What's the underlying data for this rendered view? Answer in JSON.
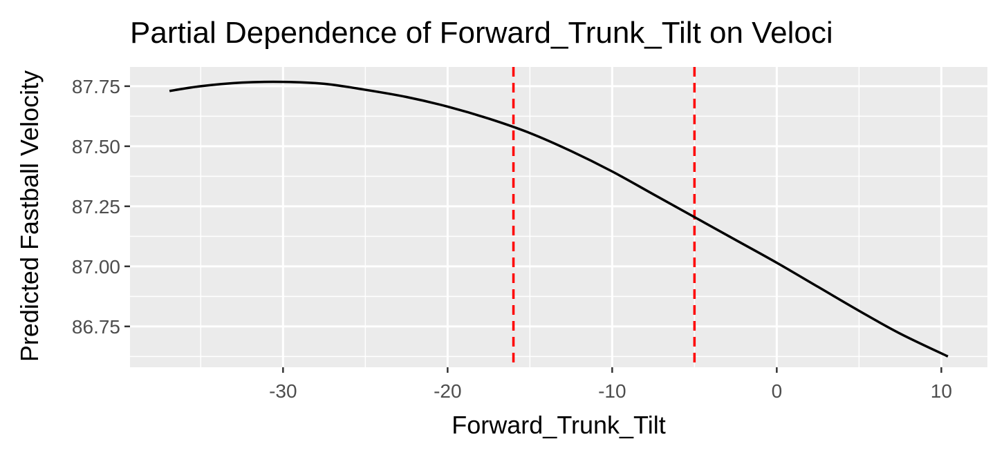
{
  "chart_data": {
    "type": "line",
    "title": "Partial Dependence of Forward_Trunk_Tilt on Veloci",
    "xlabel": "Forward_Trunk_Tilt",
    "ylabel": "Predicted Fastball Velocity",
    "xlim": [
      -39.3,
      12.8
    ],
    "ylim": [
      86.58,
      87.83
    ],
    "x_ticks": [
      -30,
      -20,
      -10,
      0,
      10
    ],
    "x_tick_labels": [
      "-30",
      "-20",
      "-10",
      "0",
      "10"
    ],
    "y_ticks": [
      86.75,
      87.0,
      87.25,
      87.5,
      87.75
    ],
    "y_tick_labels": [
      "86.75",
      "87.00",
      "87.25",
      "87.50",
      "87.75"
    ],
    "grid": true,
    "background_color": "#ebebeb",
    "line_color": "#000000",
    "reference_line_color": "#ff0000",
    "series": [
      {
        "x": [
          -36.9,
          -35,
          -32.5,
          -30,
          -27.5,
          -25,
          -22.5,
          -20,
          -17.5,
          -15,
          -12.5,
          -10,
          -7.5,
          -5,
          -2.5,
          0,
          2.5,
          5,
          7.5,
          10.4
        ],
        "y": [
          87.73,
          87.75,
          87.765,
          87.768,
          87.76,
          87.735,
          87.705,
          87.665,
          87.615,
          87.555,
          87.48,
          87.395,
          87.3,
          87.205,
          87.11,
          87.015,
          86.915,
          86.815,
          86.72,
          86.625
        ]
      }
    ],
    "reference_lines_x": [
      -16.0,
      -5.0
    ]
  }
}
